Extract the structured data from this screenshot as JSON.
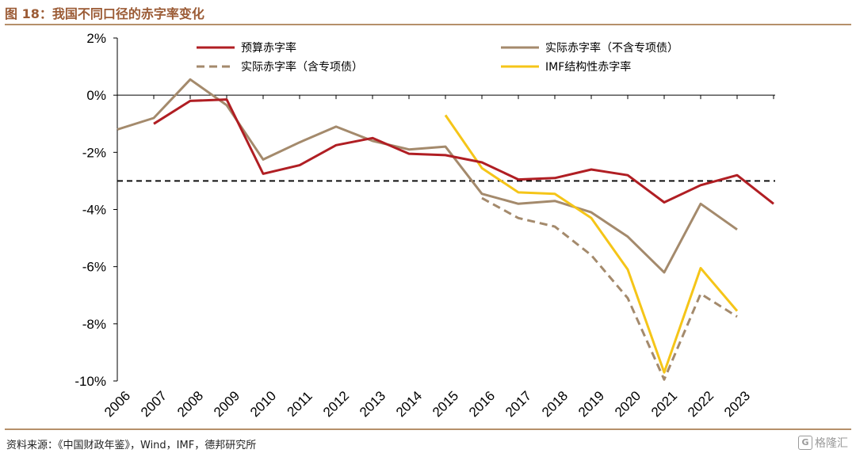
{
  "header": {
    "title": "图 18：我国不同口径的赤字率变化"
  },
  "footer": {
    "source": "资料来源：《中国财政年鉴》，Wind，IMF，德邦研究所",
    "watermark": "格隆汇"
  },
  "chart_data": {
    "type": "line",
    "x": [
      "2006",
      "2007",
      "2008",
      "2009",
      "2010",
      "2011",
      "2012",
      "2013",
      "2014",
      "2015",
      "2016",
      "2017",
      "2018",
      "2019",
      "2020",
      "2021",
      "2022",
      "2023"
    ],
    "ylim": [
      -10,
      2
    ],
    "yticks": [
      2,
      0,
      -2,
      -4,
      -6,
      -8,
      -10
    ],
    "ytick_labels": [
      "2%",
      "0%",
      "-2%",
      "-4%",
      "-6%",
      "-8%",
      "-10%"
    ],
    "reference_line": {
      "y": -3,
      "style": "dashed",
      "color": "#000000"
    },
    "legend_placement": "top",
    "series": [
      {
        "name": "预算赤字率",
        "color": "#b01e23",
        "style": "solid",
        "points": [
          [
            2007,
            -1.0
          ],
          [
            2008,
            -0.2
          ],
          [
            2009,
            -0.15
          ],
          [
            2010,
            -2.75
          ],
          [
            2011,
            -2.45
          ],
          [
            2012,
            -1.75
          ],
          [
            2013,
            -1.5
          ],
          [
            2014,
            -2.05
          ],
          [
            2015,
            -2.1
          ],
          [
            2016,
            -2.35
          ],
          [
            2017,
            -2.95
          ],
          [
            2018,
            -2.9
          ],
          [
            2019,
            -2.6
          ],
          [
            2020,
            -2.8
          ],
          [
            2021,
            -3.75
          ],
          [
            2022,
            -3.15
          ],
          [
            2023,
            -2.8
          ],
          [
            2024,
            -3.8
          ]
        ]
      },
      {
        "name": "实际赤字率（不含专项债）",
        "color": "#a48a6c",
        "style": "solid",
        "points": [
          [
            2006,
            -1.2
          ],
          [
            2007,
            -0.8
          ],
          [
            2008,
            0.55
          ],
          [
            2009,
            -0.35
          ],
          [
            2010,
            -2.25
          ],
          [
            2011,
            -1.65
          ],
          [
            2012,
            -1.1
          ],
          [
            2013,
            -1.6
          ],
          [
            2014,
            -1.9
          ],
          [
            2015,
            -1.8
          ],
          [
            2016,
            -3.45
          ],
          [
            2017,
            -3.8
          ],
          [
            2018,
            -3.7
          ],
          [
            2019,
            -4.1
          ],
          [
            2020,
            -4.95
          ],
          [
            2021,
            -6.2
          ],
          [
            2022,
            -3.8
          ],
          [
            2023,
            -4.7
          ]
        ]
      },
      {
        "name": "实际赤字率（含专项债）",
        "color": "#a48a6c",
        "style": "dashed",
        "points": [
          [
            2016,
            -3.6
          ],
          [
            2017,
            -4.3
          ],
          [
            2018,
            -4.6
          ],
          [
            2019,
            -5.6
          ],
          [
            2020,
            -7.1
          ],
          [
            2021,
            -9.95
          ],
          [
            2022,
            -6.95
          ],
          [
            2023,
            -7.75
          ]
        ]
      },
      {
        "name": "IMF结构性赤字率",
        "color": "#f5c518",
        "style": "solid",
        "points": [
          [
            2015,
            -0.7
          ],
          [
            2016,
            -2.55
          ],
          [
            2017,
            -3.4
          ],
          [
            2018,
            -3.45
          ],
          [
            2019,
            -4.3
          ],
          [
            2020,
            -6.1
          ],
          [
            2021,
            -9.7
          ],
          [
            2022,
            -6.05
          ],
          [
            2023,
            -7.55
          ]
        ]
      }
    ]
  }
}
